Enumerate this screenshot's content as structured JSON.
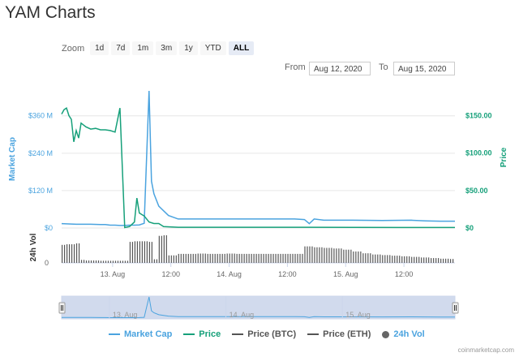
{
  "title": "YAM Charts",
  "zoom": {
    "label": "Zoom",
    "buttons": [
      "1d",
      "7d",
      "1m",
      "3m",
      "1y",
      "YTD",
      "ALL"
    ],
    "active": "ALL"
  },
  "range": {
    "from_label": "From",
    "from_value": "Aug 12, 2020",
    "to_label": "To",
    "to_value": "Aug 15, 2020"
  },
  "chart_data": {
    "type": "line",
    "left_axis": {
      "label": "Market Cap",
      "ticks": [
        "$0",
        "$120 M",
        "$240 M",
        "$360 M"
      ],
      "ylim": [
        0,
        440
      ],
      "unit": "M USD"
    },
    "right_axis": {
      "label": "Price",
      "ticks": [
        "$0",
        "$50.00",
        "$100.00",
        "$150.00"
      ],
      "ylim": [
        0,
        183
      ]
    },
    "volume_axis": {
      "label": "24h Vol",
      "ticks": [
        "0"
      ]
    },
    "x_ticks": [
      "13. Aug",
      "12:00",
      "14. Aug",
      "12:00",
      "15. Aug",
      "12:00"
    ],
    "x_hours_range": [
      0,
      81
    ],
    "series": [
      {
        "name": "Market Cap",
        "color": "#4aa3df",
        "x_hours": [
          0,
          3,
          6,
          8,
          9,
          10,
          11,
          12,
          13,
          14,
          15,
          16,
          17,
          18,
          18.5,
          19,
          20,
          22,
          24,
          27,
          30,
          36,
          42,
          48,
          50,
          51,
          52,
          54,
          60,
          66,
          72,
          75,
          78,
          81
        ],
        "values": [
          14,
          12,
          12,
          11,
          11,
          9,
          9,
          8,
          8,
          9,
          9,
          10,
          15,
          440,
          150,
          110,
          70,
          40,
          29,
          29,
          29,
          29,
          29,
          29,
          27,
          14,
          29,
          25,
          25,
          24,
          25,
          23,
          22,
          22
        ]
      },
      {
        "name": "Price",
        "color": "#16a07a",
        "x_hours": [
          0,
          0.5,
          1,
          1.5,
          2,
          2.5,
          3,
          3.5,
          4,
          5,
          6,
          7,
          8,
          9,
          10,
          11,
          12,
          13,
          14,
          15,
          15.5,
          16,
          16.5,
          17,
          18,
          19,
          20,
          21,
          24,
          30,
          40,
          50,
          60,
          70,
          81
        ],
        "values": [
          152,
          158,
          160,
          150,
          145,
          115,
          130,
          120,
          140,
          135,
          132,
          133,
          131,
          131,
          130,
          128,
          160,
          0.5,
          2,
          8,
          40,
          20,
          18,
          16,
          8,
          6,
          6,
          2,
          1,
          1,
          1,
          1,
          0.8,
          0.7,
          0.7
        ]
      },
      {
        "name": "Price (BTC)",
        "color": "#555555",
        "values": []
      },
      {
        "name": "Price (ETH)",
        "color": "#555555",
        "values": []
      },
      {
        "name": "24h Vol",
        "color": "#555555",
        "x_hours": [
          0,
          1,
          2,
          3,
          4,
          5,
          6,
          7,
          8,
          9,
          10,
          11,
          12,
          13,
          14,
          15,
          16,
          17,
          18,
          19,
          20,
          21,
          22,
          24,
          26,
          28,
          30,
          32,
          34,
          36,
          38,
          40,
          42,
          44,
          46,
          48,
          50,
          52,
          54,
          56,
          58,
          60,
          62,
          64,
          66,
          68,
          70,
          72,
          74,
          76,
          78,
          80
        ],
        "values": [
          60,
          62,
          62,
          65,
          10,
          8,
          8,
          8,
          7,
          7,
          7,
          7,
          7,
          7,
          70,
          72,
          72,
          72,
          70,
          12,
          90,
          92,
          25,
          30,
          30,
          31,
          30,
          30,
          31,
          30,
          30,
          30,
          30,
          30,
          30,
          30,
          55,
          52,
          50,
          48,
          44,
          38,
          32,
          28,
          26,
          24,
          22,
          20,
          18,
          16,
          14,
          13
        ]
      }
    ]
  },
  "navigator": {
    "labels": [
      "13. Aug",
      "14. Aug",
      "15. Aug"
    ]
  },
  "legend": [
    {
      "label": "Market Cap",
      "color": "#4aa3df",
      "kind": "line"
    },
    {
      "label": "Price",
      "color": "#16a07a",
      "kind": "line"
    },
    {
      "label": "Price (BTC)",
      "color": "#555555",
      "kind": "line"
    },
    {
      "label": "Price (ETH)",
      "color": "#555555",
      "kind": "line"
    },
    {
      "label": "24h Vol",
      "color": "#555555",
      "kind": "dot"
    }
  ],
  "credit": "coinmarketcap.com"
}
